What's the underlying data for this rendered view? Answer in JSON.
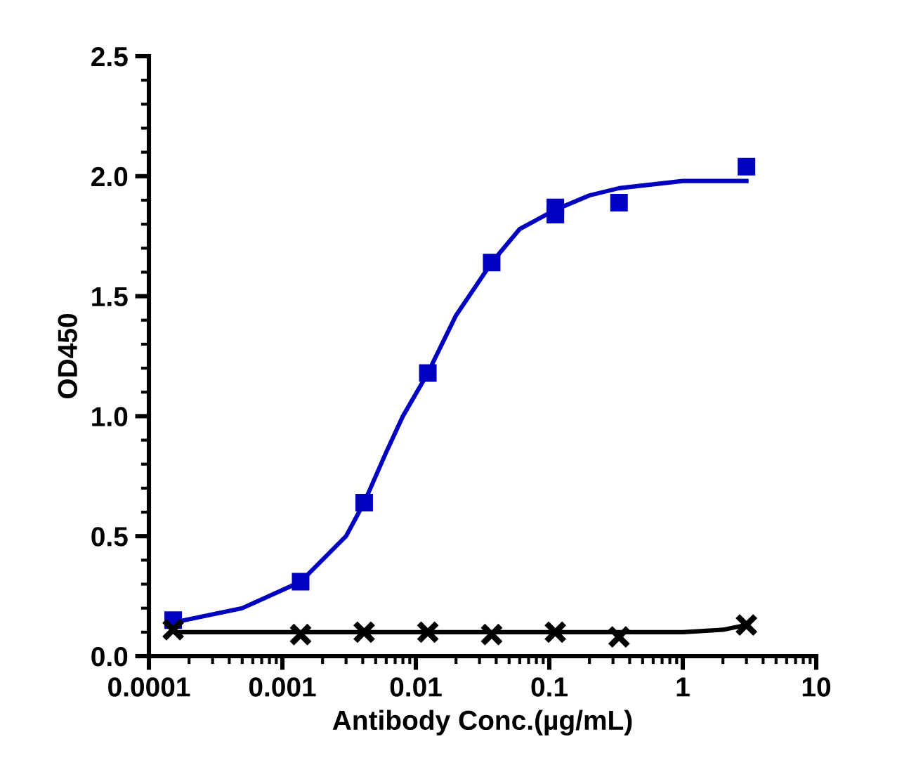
{
  "chart_data": {
    "type": "scatter",
    "xlabel": "Antibody Conc.(µg/mL)",
    "ylabel": "OD450",
    "log": "x",
    "xlim": [
      0.0001,
      10
    ],
    "xticks": [
      0.0001,
      0.001,
      0.01,
      0.1,
      1,
      10
    ],
    "ylim": [
      0,
      2.5
    ],
    "yticks": [
      {
        "value": 0,
        "label": "0.0"
      },
      {
        "value": 0.5,
        "label": "0.5"
      },
      {
        "value": 1,
        "label": "1.0"
      },
      {
        "value": 1.5,
        "label": "1.5"
      },
      {
        "value": 2,
        "label": "2.0"
      },
      {
        "value": 2.5,
        "label": "2.5"
      }
    ],
    "grid": false,
    "legend": false,
    "series": [
      {
        "marker": "square",
        "color": "#0000c0",
        "x": [
          0.000152,
          0.00137,
          0.0041,
          0.0123,
          0.037,
          0.111,
          0.111,
          0.333,
          3
        ],
        "values": [
          0.15,
          0.31,
          0.64,
          1.18,
          1.64,
          1.87,
          1.84,
          1.89,
          2.04
        ]
      },
      {
        "marker": "cross",
        "color": "#000000",
        "x": [
          0.000152,
          0.00137,
          0.0041,
          0.0123,
          0.037,
          0.111,
          0.333,
          3
        ],
        "values": [
          0.11,
          0.09,
          0.1,
          0.1,
          0.09,
          0.1,
          0.08,
          0.13
        ]
      },
      {
        "type": "line",
        "marker": "none",
        "line_style": "solid",
        "color": "#0000c0",
        "x": [
          0.000152,
          0.0005,
          0.00137,
          0.003,
          0.0041,
          0.006,
          0.008,
          0.0123,
          0.02,
          0.037,
          0.06,
          0.111,
          0.2,
          0.333,
          1,
          3
        ],
        "values": [
          0.14,
          0.2,
          0.31,
          0.5,
          0.64,
          0.85,
          1.0,
          1.18,
          1.42,
          1.64,
          1.78,
          1.86,
          1.92,
          1.95,
          1.98,
          1.98
        ]
      },
      {
        "type": "line",
        "marker": "none",
        "line_style": "solid",
        "color": "#000000",
        "x": [
          0.000152,
          0.01,
          0.5,
          1,
          2,
          3
        ],
        "values": [
          0.1,
          0.1,
          0.1,
          0.1,
          0.11,
          0.13
        ]
      }
    ]
  }
}
